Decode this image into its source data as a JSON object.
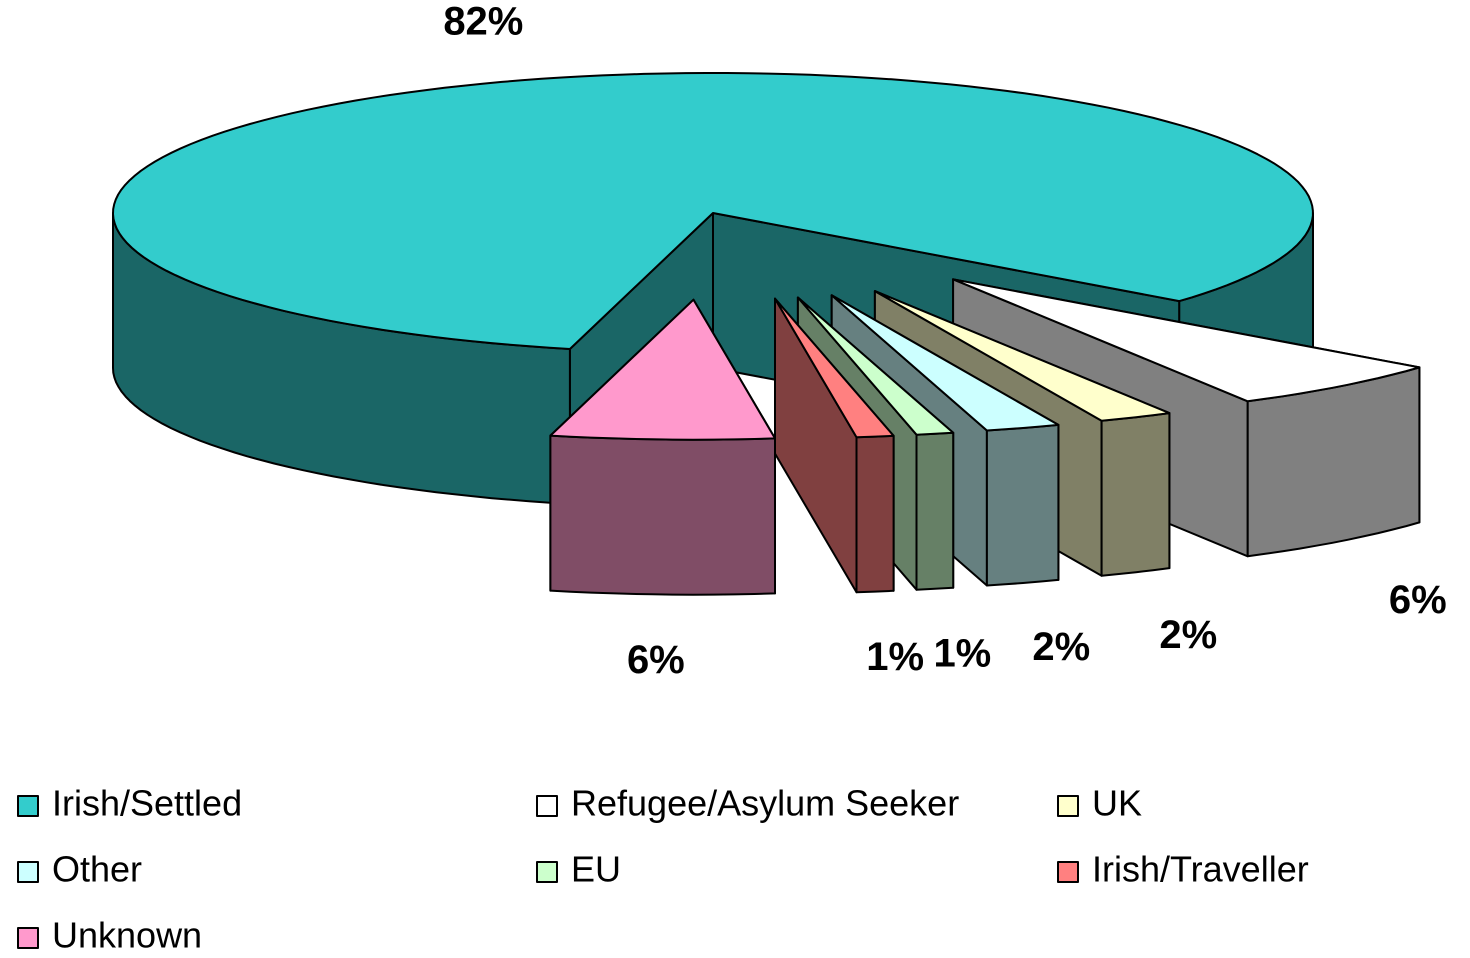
{
  "chart_data": {
    "type": "pie",
    "categories": [
      "Irish/Settled",
      "Refugee/Asylum Seeker",
      "UK",
      "Other",
      "EU",
      "Irish/Traveller",
      "Unknown"
    ],
    "values": [
      82,
      6,
      2,
      2,
      1,
      1,
      6
    ],
    "value_labels": [
      "82%",
      "6%",
      "2%",
      "2%",
      "1%",
      "1%",
      "6%"
    ],
    "colors": [
      "#33CCCC",
      "#FFFFFF",
      "#FFFFCC",
      "#CCFFFF",
      "#CCFFCC",
      "#FF8080",
      "#FF99CC"
    ],
    "legend": "bottom"
  }
}
